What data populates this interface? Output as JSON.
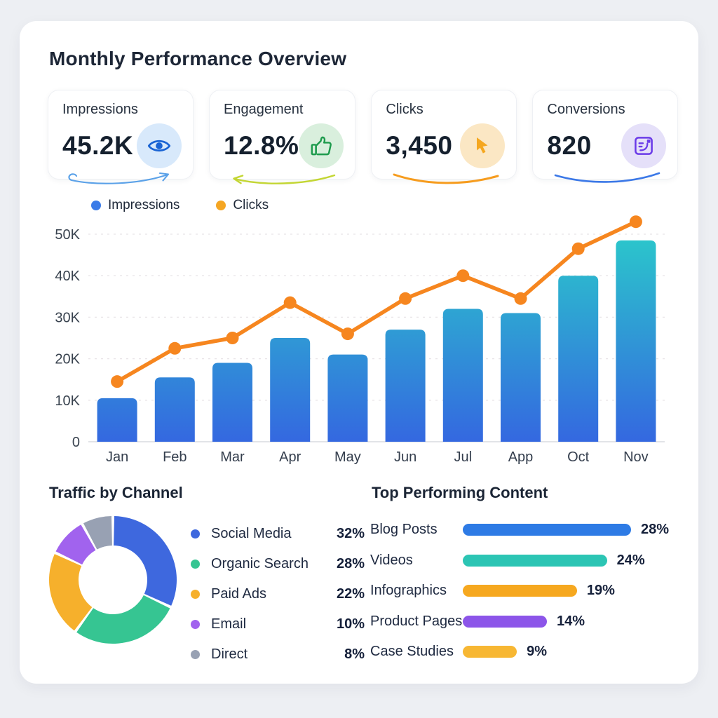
{
  "title": "Monthly Performance Overview",
  "kpis": [
    {
      "label": "Impressions",
      "value": "45.2K",
      "icon": "eye-icon",
      "circle_bg": "#d8e9fb",
      "accent": "#1a64d4",
      "sketch_color": "#5aa1e8"
    },
    {
      "label": "Engagement",
      "value": "12.8%",
      "icon": "thumbs-up-icon",
      "circle_bg": "#d9efdd",
      "accent": "#1e9b4d",
      "sketch_color": "#c3d633"
    },
    {
      "label": "Clicks",
      "value": "3,450",
      "icon": "cursor-icon",
      "circle_bg": "#fbe7c4",
      "accent": "#f5a71f",
      "sketch_color": "#f69c1e"
    },
    {
      "label": "Conversions",
      "value": "820",
      "icon": "conversion-badge-icon",
      "circle_bg": "#e5e0f9",
      "accent": "#6b3be8",
      "sketch_color": "#3b78e7"
    }
  ],
  "chart_data": [
    {
      "type": "combo-bar-line",
      "categories": [
        "Jan",
        "Feb",
        "Mar",
        "Apr",
        "May",
        "Jun",
        "Jul",
        "App",
        "Oct",
        "Nov"
      ],
      "series": [
        {
          "name": "Impressions",
          "type": "bar",
          "values": [
            10500,
            15500,
            19000,
            25000,
            21000,
            27000,
            32000,
            31000,
            40000,
            48500
          ],
          "color_top": "#2bc7cb",
          "color_bottom": "#3468e0",
          "legend_dot": "#3b7ce8"
        },
        {
          "name": "Clicks",
          "type": "line",
          "values": [
            14500,
            22500,
            25000,
            33500,
            26000,
            34500,
            40000,
            34500,
            46500,
            53000
          ],
          "color": "#f6861f",
          "legend_dot": "#f5a623"
        }
      ],
      "ylim": [
        0,
        50000
      ],
      "yticks": [
        {
          "value": 0,
          "label": "0"
        },
        {
          "value": 10000,
          "label": "10K"
        },
        {
          "value": 20000,
          "label": "20K"
        },
        {
          "value": 30000,
          "label": "30K"
        },
        {
          "value": 40000,
          "label": "40K"
        },
        {
          "value": 50000,
          "label": "50K"
        }
      ],
      "grid": "horizontal-dashed",
      "legend_position": "top-left"
    },
    {
      "type": "pie",
      "donut": true,
      "title": "Traffic by Channel",
      "labels": [
        "Social Media",
        "Organic Search",
        "Paid Ads",
        "Email",
        "Direct"
      ],
      "values": [
        32,
        28,
        22,
        10,
        8
      ],
      "unit": "%",
      "colors": [
        "#3e68de",
        "#36c592",
        "#f6b02c",
        "#a163ee",
        "#98a1b3"
      ],
      "legend_position": "right"
    },
    {
      "type": "bar",
      "orientation": "horizontal",
      "title": "Top Performing Content",
      "categories": [
        "Blog Posts",
        "Videos",
        "Infographics",
        "Product Pages",
        "Case Studies"
      ],
      "values": [
        28,
        24,
        19,
        14,
        9
      ],
      "unit": "%",
      "colors": [
        "#2e7be5",
        "#2cc5b4",
        "#f6a81f",
        "#8c55e9",
        "#f7b733"
      ]
    }
  ]
}
